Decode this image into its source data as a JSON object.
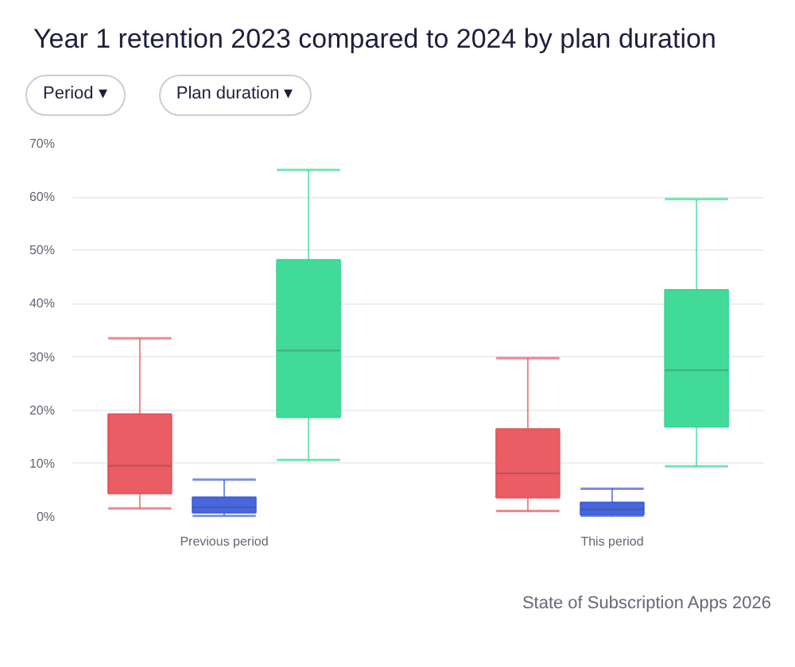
{
  "chart_data": {
    "type": "box",
    "title": "Year 1 retention 2023 compared to 2024 by plan duration",
    "categories": [
      "Previous period",
      "This period"
    ],
    "series": [
      {
        "color": "#e9545d",
        "boxes": [
          {
            "low": 1.6,
            "q1": 4.4,
            "median": 9.6,
            "q3": 19.3,
            "high": 33.5
          },
          {
            "low": 1.1,
            "q1": 3.6,
            "median": 8.2,
            "q3": 16.5,
            "high": 29.8
          }
        ]
      },
      {
        "color": "#3f5fd9",
        "boxes": [
          {
            "low": 0.2,
            "q1": 0.8,
            "median": 1.8,
            "q3": 3.7,
            "high": 7.0
          },
          {
            "low": 0.1,
            "q1": 0.4,
            "median": 1.4,
            "q3": 2.7,
            "high": 5.3
          }
        ]
      },
      {
        "color": "#38d893",
        "boxes": [
          {
            "low": 10.7,
            "q1": 18.7,
            "median": 31.2,
            "q3": 48.2,
            "high": 65.1
          },
          {
            "low": 9.5,
            "q1": 16.9,
            "median": 27.5,
            "q3": 42.6,
            "high": 59.6
          }
        ]
      }
    ],
    "ylim": [
      0,
      70
    ],
    "yticks": [
      {
        "value": 0,
        "label": "0%"
      },
      {
        "value": 10,
        "label": "10%"
      },
      {
        "value": 20,
        "label": "20%"
      },
      {
        "value": 30,
        "label": "30%"
      },
      {
        "value": 40,
        "label": "40%"
      },
      {
        "value": 50,
        "label": "50%"
      },
      {
        "value": 60,
        "label": "60%"
      },
      {
        "value": 70,
        "label": "70%"
      }
    ],
    "grid": "y",
    "annotations": [
      "Period ▾",
      "Plan duration ▾",
      "State of Subscription Apps 2026"
    ]
  }
}
